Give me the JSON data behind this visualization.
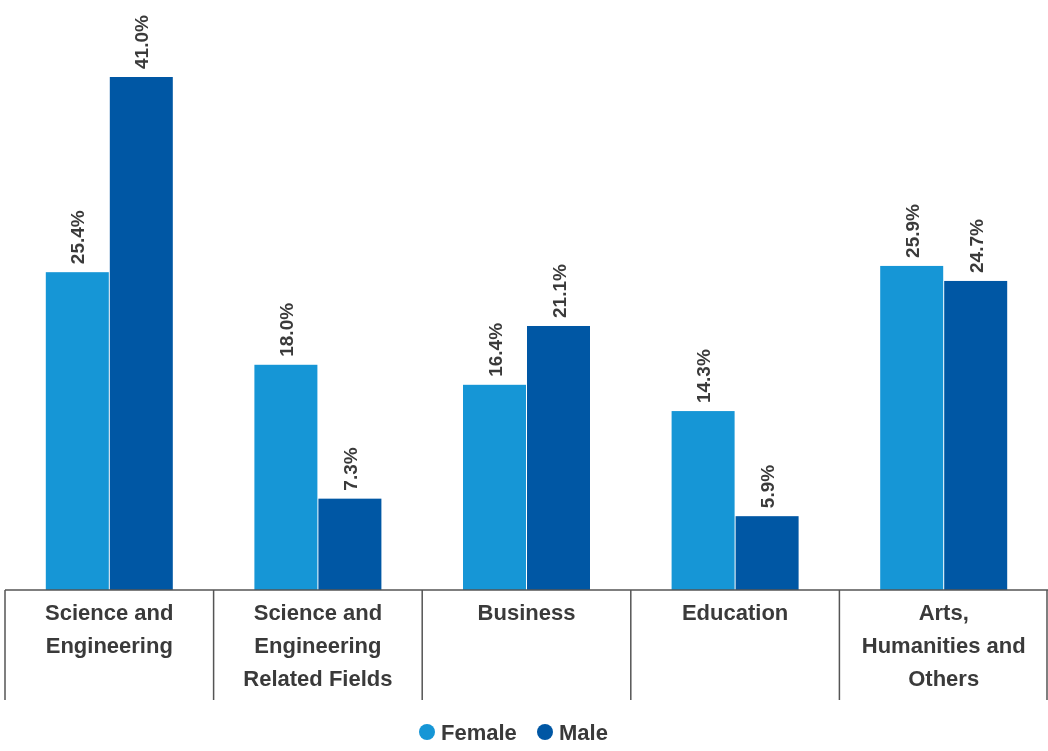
{
  "chart_data": {
    "type": "bar",
    "categories": [
      "Science and Engineering",
      "Science and Engineering Related Fields",
      "Business",
      "Education",
      "Arts, Humanities and Others"
    ],
    "series": [
      {
        "name": "Female",
        "color": "#1696d6",
        "values": [
          25.4,
          18.0,
          16.4,
          14.3,
          25.9
        ],
        "value_labels": [
          "25.4%",
          "18.0%",
          "16.4%",
          "14.3%",
          "25.9%"
        ]
      },
      {
        "name": "Male",
        "color": "#0057a4",
        "values": [
          41.0,
          7.3,
          21.1,
          5.9,
          24.7
        ],
        "value_labels": [
          "41.0%",
          "7.3%",
          "21.1%",
          "5.9%",
          "24.7%"
        ]
      }
    ],
    "tick_labels": "x",
    "legend": "bottom"
  }
}
